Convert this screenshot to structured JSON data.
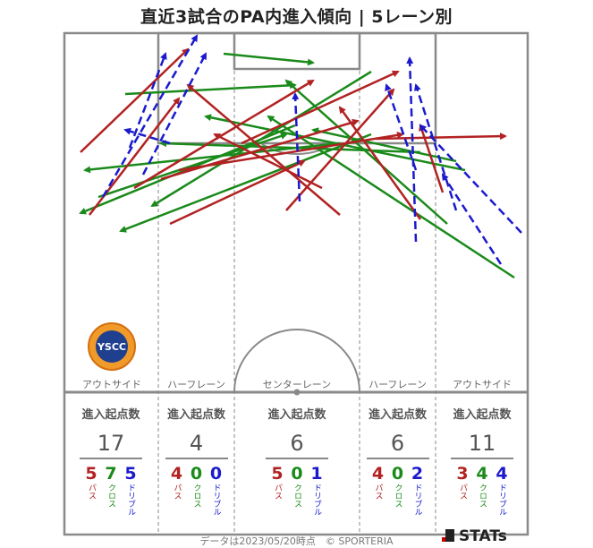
{
  "title": "直近3試合のPA内進入傾向 | 5レーン別",
  "legend_labels": {
    "pass": "パス",
    "cross": "クロス",
    "dribble": "ドリブル"
  },
  "colors": {
    "pass": "#b22222",
    "cross": "#1a8a1a",
    "dribble": "#1a1acc"
  },
  "lanes": [
    {
      "name": "アウトサイド",
      "stat_head": "進入起点数",
      "total": "11",
      "pass": "3",
      "cross": "4",
      "dribble": "4"
    },
    {
      "name": "ハーフレーン",
      "stat_head": "進入起点数",
      "total": "6",
      "pass": "4",
      "cross": "0",
      "dribble": "2"
    },
    {
      "name": "センターレーン",
      "stat_head": "進入起点数",
      "total": "6",
      "pass": "5",
      "cross": "0",
      "dribble": "1"
    },
    {
      "name": "ハーフレーン",
      "stat_head": "進入起点数",
      "total": "4",
      "pass": "4",
      "cross": "0",
      "dribble": "0"
    },
    {
      "name": "アウトサイド",
      "stat_head": "進入起点数",
      "total": "17",
      "pass": "5",
      "cross": "7",
      "dribble": "5"
    }
  ],
  "logo_text": "YSCC",
  "footer": "データは2023/05/20時点　© SPORTERIA",
  "brand": "STATs"
}
